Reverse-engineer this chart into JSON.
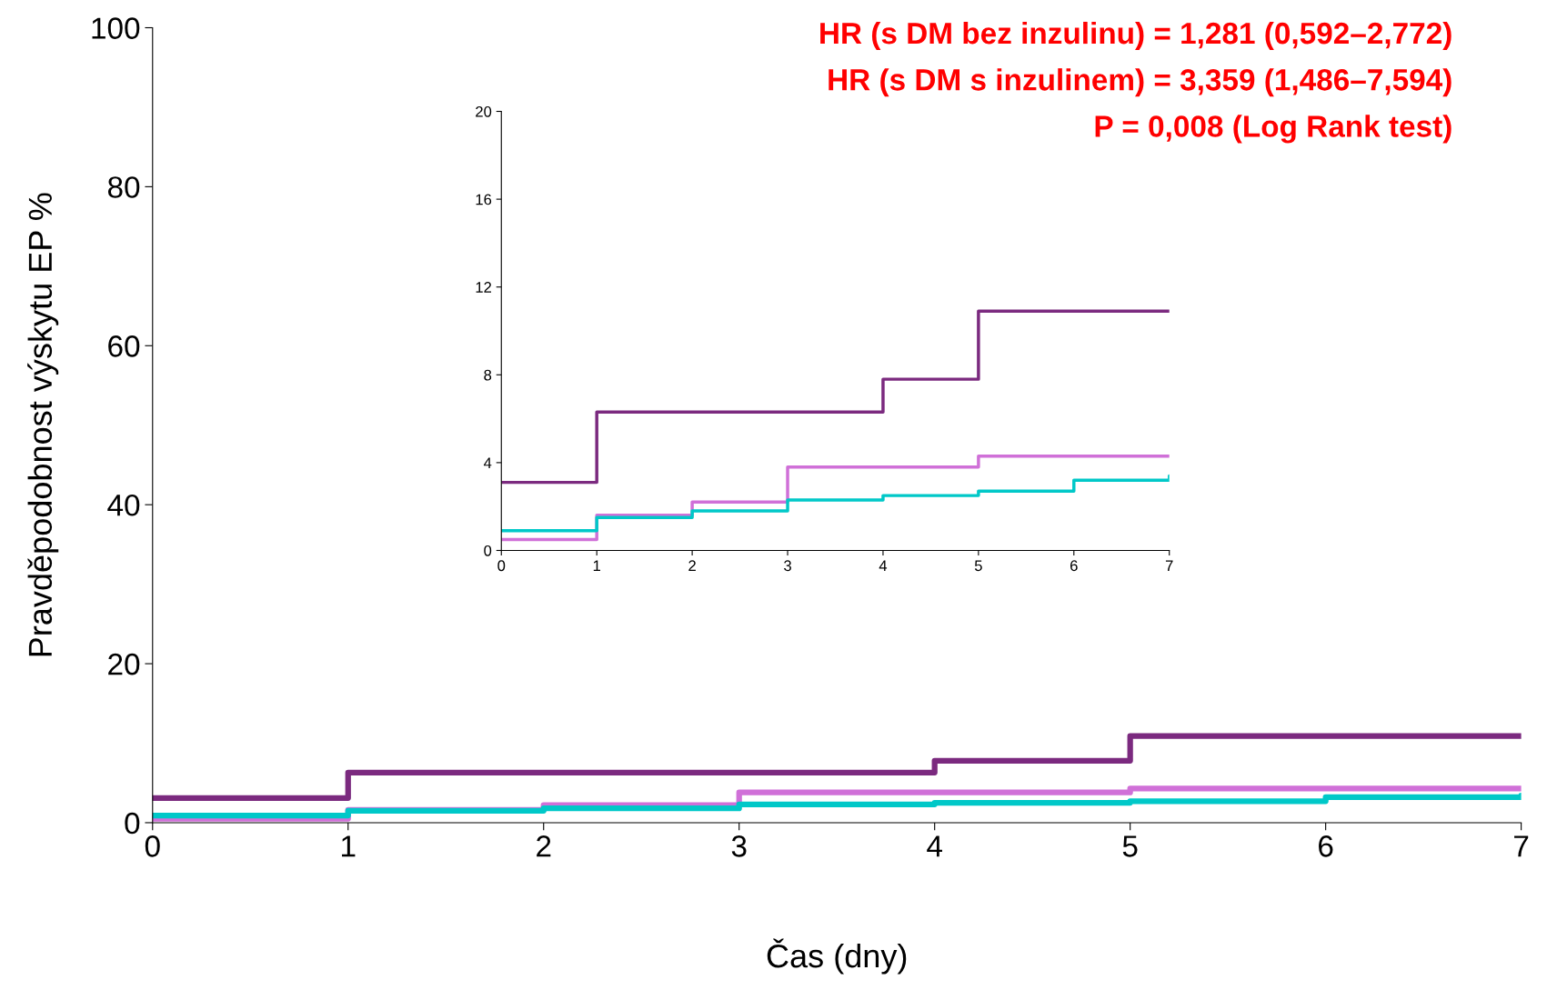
{
  "chart_data": [
    {
      "type": "step",
      "xlabel": "Čas (dny)",
      "ylabel": "Pravděpodobnost výskytu EP %",
      "annotations": [
        "HR (s DM bez inzulinu) = 1,281 (0,592–2,772)",
        "HR (s DM s inzulinem) = 3,359 (1,486–7,594)",
        "P = 0,008 (Log Rank test)"
      ],
      "xlim": [
        0,
        7
      ],
      "xticks": [
        0,
        1,
        2,
        3,
        4,
        5,
        6,
        7
      ],
      "ylim": [
        0,
        100
      ],
      "yticks": [
        0,
        20,
        40,
        60,
        80,
        100
      ],
      "series": [
        {
          "color": "#7b2a7f",
          "x": [
            0,
            1,
            4,
            5,
            7
          ],
          "values": [
            3.1,
            6.3,
            7.8,
            10.9,
            10.9
          ]
        },
        {
          "color": "#d070d8",
          "x": [
            0,
            1,
            2,
            3,
            5,
            7
          ],
          "values": [
            0.5,
            1.6,
            2.2,
            3.8,
            4.3,
            4.3
          ]
        },
        {
          "color": "#00c8c8",
          "x": [
            0,
            1,
            2,
            3,
            4,
            5,
            6,
            7
          ],
          "values": [
            0.9,
            1.5,
            1.8,
            2.3,
            2.5,
            2.7,
            3.2,
            3.4
          ]
        }
      ]
    },
    {
      "type": "step",
      "xlim": [
        0,
        7
      ],
      "xticks": [
        0,
        1,
        2,
        3,
        4,
        5,
        6,
        7
      ],
      "ylim": [
        0,
        20
      ],
      "yticks": [
        0,
        4,
        8,
        12,
        16,
        20
      ],
      "series": [
        {
          "color": "#7b2a7f",
          "x": [
            0,
            1,
            4,
            5,
            7
          ],
          "values": [
            3.1,
            6.3,
            7.8,
            10.9,
            10.9
          ]
        },
        {
          "color": "#d070d8",
          "x": [
            0,
            1,
            2,
            3,
            5,
            7
          ],
          "values": [
            0.5,
            1.6,
            2.2,
            3.8,
            4.3,
            4.3
          ]
        },
        {
          "color": "#00c8c8",
          "x": [
            0,
            1,
            2,
            3,
            4,
            5,
            6,
            7
          ],
          "values": [
            0.9,
            1.5,
            1.8,
            2.3,
            2.5,
            2.7,
            3.2,
            3.4
          ]
        }
      ]
    }
  ]
}
